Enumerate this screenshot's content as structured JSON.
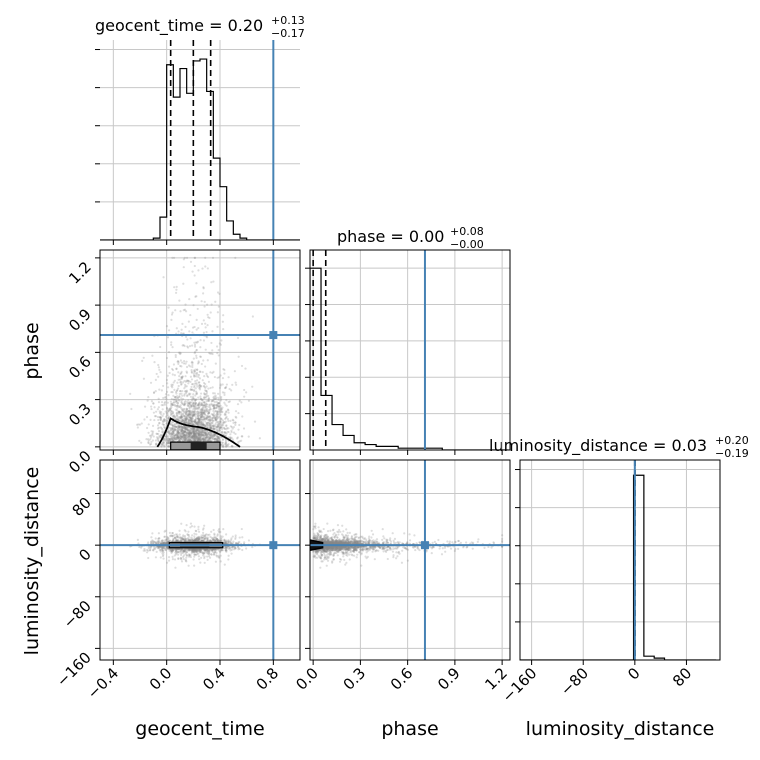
{
  "chart_data": {
    "type": "corner",
    "parameters": [
      "geocent_time",
      "phase",
      "luminosity_distance"
    ],
    "truth": {
      "geocent_time": 0.8,
      "phase": 0.71,
      "luminosity_distance": 0.0
    },
    "truth_color": "#4682b4",
    "scatter_color": "#888888",
    "titles": [
      {
        "name": "geocent_time",
        "lhs": "geocent_time = 0.20",
        "upper": "+0.13",
        "lower": "−0.17"
      },
      {
        "name": "phase",
        "lhs": "phase = 0.00",
        "upper": "+0.08",
        "lower": "−0.00"
      },
      {
        "name": "luminosity_distance",
        "lhs": "luminosity_distance = 0.03",
        "upper": "+0.20",
        "lower": "−0.19"
      }
    ],
    "axes": {
      "geocent_time": {
        "range": [
          -0.5,
          1.0
        ],
        "ticks": [
          -0.4,
          0.0,
          0.4,
          0.8
        ],
        "tick_labels": [
          "−0.4",
          "0.0",
          "0.4",
          "0.8"
        ]
      },
      "phase": {
        "range": [
          -0.02,
          1.25
        ],
        "ticks": [
          0.0,
          0.3,
          0.6,
          0.9,
          1.2
        ],
        "tick_labels": [
          "0.0",
          "0.3",
          "0.6",
          "0.9",
          "1.2"
        ]
      },
      "luminosity_distance": {
        "range": [
          -178,
          132
        ],
        "ticks": [
          -160,
          -80,
          0,
          80
        ],
        "tick_labels": [
          "−160",
          "−80",
          "0",
          "80"
        ]
      }
    },
    "hist_geocent_time": {
      "edges": [
        -0.5,
        -0.45,
        -0.4,
        -0.35,
        -0.3,
        -0.25,
        -0.2,
        -0.15,
        -0.1,
        -0.05,
        0.0,
        0.05,
        0.1,
        0.15,
        0.2,
        0.25,
        0.3,
        0.35,
        0.4,
        0.45,
        0.5,
        0.55,
        0.6,
        0.65,
        0.7,
        0.75,
        0.8,
        0.85,
        0.9,
        0.95,
        1.0
      ],
      "counts": [
        0,
        0,
        0,
        0,
        0,
        0,
        0,
        0,
        1,
        12,
        92,
        75,
        90,
        77,
        94,
        95,
        78,
        43,
        28,
        10,
        3,
        1,
        0,
        0,
        0,
        0,
        0,
        0,
        0,
        0
      ],
      "ymax": 105,
      "quantiles": [
        0.03,
        0.2,
        0.33
      ]
    },
    "hist_phase": {
      "edges": [
        -0.02,
        0.05,
        0.12,
        0.19,
        0.26,
        0.33,
        0.4,
        0.47,
        0.54,
        0.61,
        0.68,
        0.75,
        0.82,
        0.89,
        0.96,
        1.03,
        1.1,
        1.17,
        1.24
      ],
      "counts": [
        100,
        30,
        14,
        8,
        4,
        3,
        2,
        2,
        1,
        1,
        1,
        1,
        0,
        0,
        0,
        0,
        0,
        0
      ],
      "ymax": 110,
      "quantiles": [
        0.0,
        0.08
      ]
    },
    "hist_luminosity_distance": {
      "edges": [
        -178,
        -162,
        -146,
        -130,
        -114,
        -98,
        -82,
        -66,
        -50,
        -34,
        -18,
        -2,
        14,
        30,
        46,
        62,
        78,
        94,
        110,
        126
      ],
      "counts": [
        0,
        0,
        0,
        0,
        0,
        0,
        0,
        0,
        0,
        0,
        0,
        97,
        2,
        1,
        0,
        0,
        0,
        0,
        0
      ],
      "ymax": 105,
      "quantiles": [
        -0.16,
        0.03,
        0.23
      ]
    },
    "yticks_counts": [
      20,
      40,
      60,
      80,
      100
    ]
  }
}
